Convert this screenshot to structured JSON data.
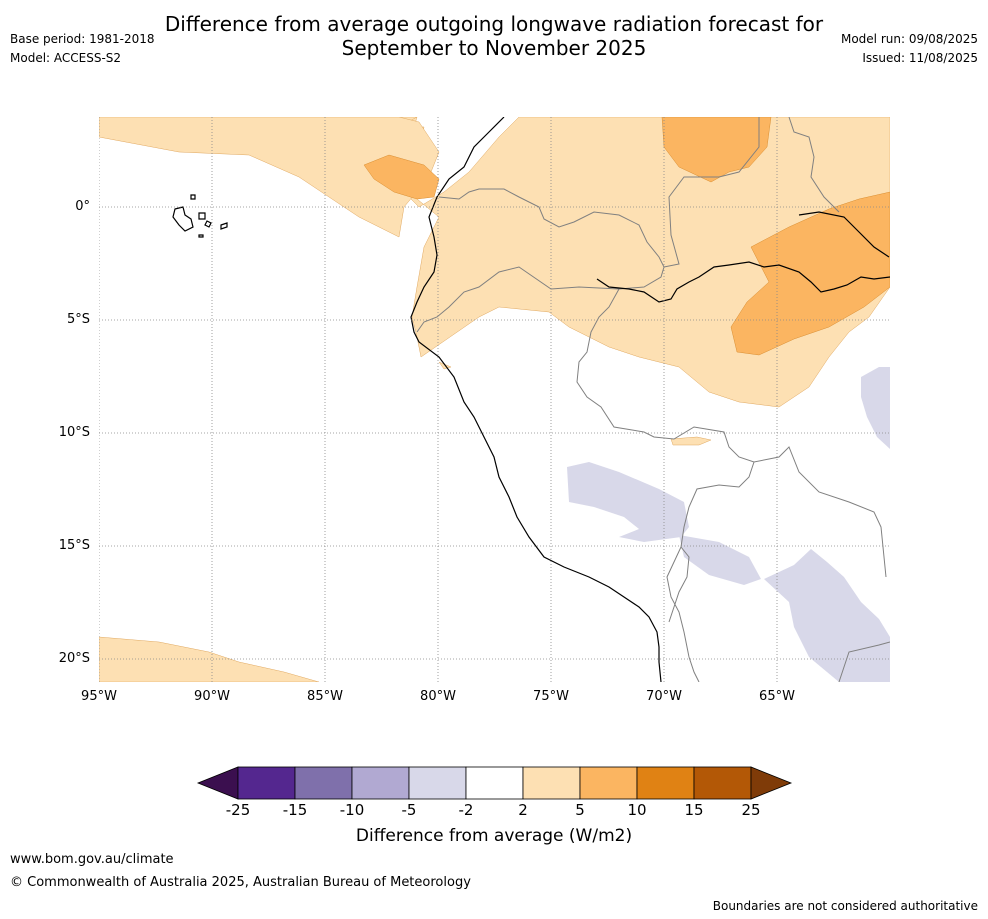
{
  "header": {
    "title_line1": "Difference from average outgoing longwave radiation forecast for",
    "title_line2": "September to November 2025",
    "base_period": "Base period: 1981-2018",
    "model": "Model: ACCESS-S2",
    "model_run": "Model run: 09/08/2025",
    "issued": "Issued: 11/08/2025"
  },
  "map": {
    "lat_labels": [
      "0°",
      "5°S",
      "10°S",
      "15°S",
      "20°S"
    ],
    "lon_labels": [
      "95°W",
      "90°W",
      "85°W",
      "80°W",
      "75°W",
      "70°W",
      "65°W"
    ]
  },
  "colorbar": {
    "ticks": [
      "-25",
      "-15",
      "-10",
      "-5",
      "-2",
      "2",
      "5",
      "10",
      "15",
      "25"
    ],
    "colors": [
      "#3b0f4f",
      "#54278f",
      "#7f70ab",
      "#b1a9d2",
      "#d8d8e9",
      "#ffffff",
      "#fde0b3",
      "#fbb561",
      "#e08214",
      "#b35806",
      "#7f3b08"
    ],
    "title": "Difference from average (W/m2)"
  },
  "footer": {
    "url": "www.bom.gov.au/climate",
    "copyright": "© Commonwealth of Australia 2025, Australian Bureau of Meteorology",
    "disclaimer": "Boundaries are not considered authoritative"
  }
}
